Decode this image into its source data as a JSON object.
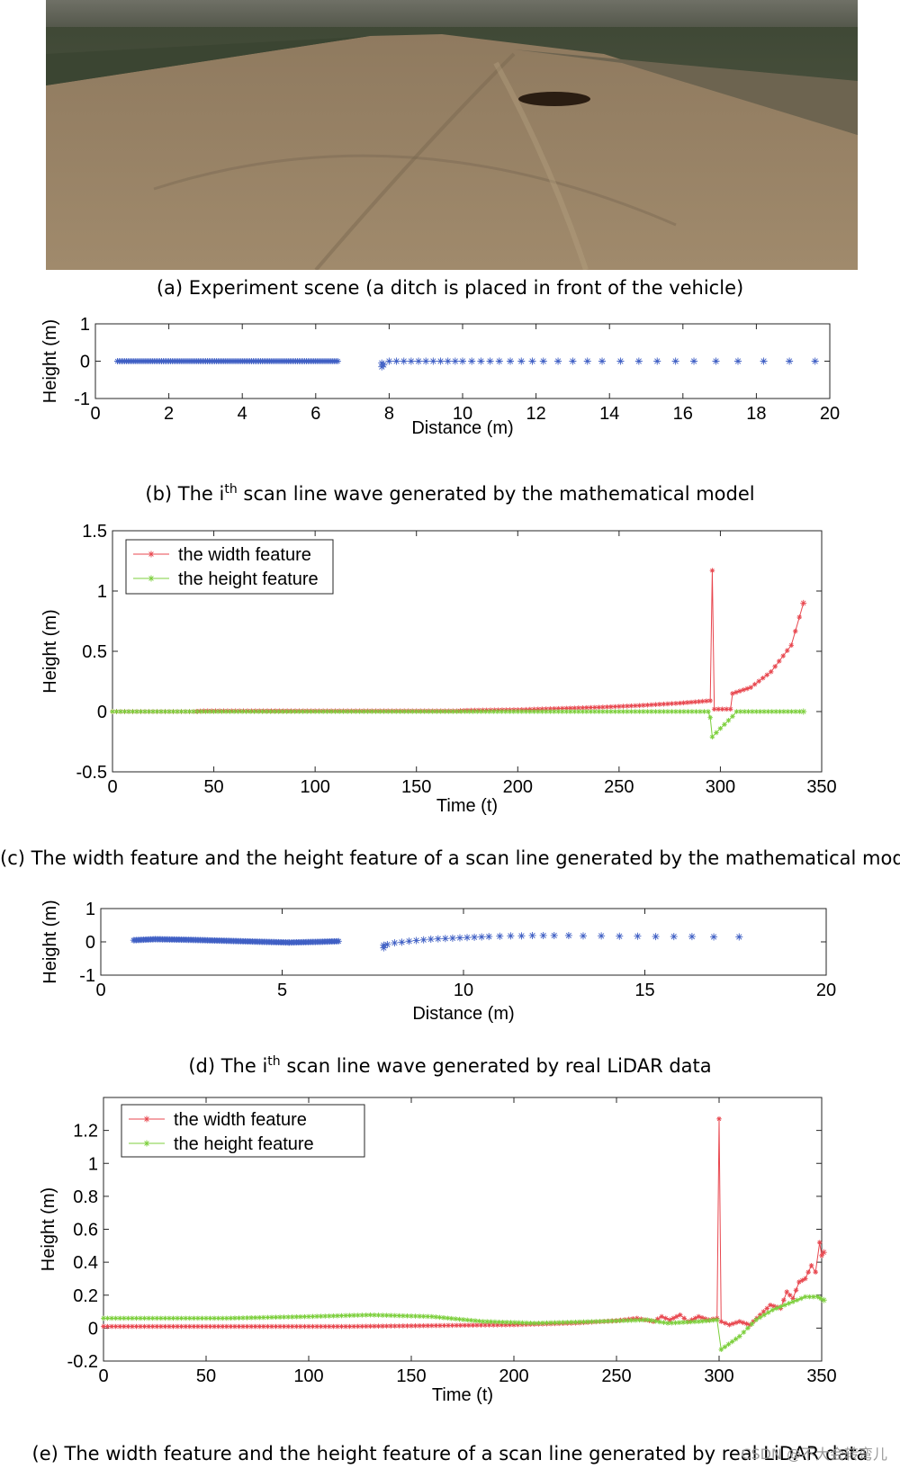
{
  "captions": {
    "a": "(a)   Experiment scene (a ditch is placed in front of the vehicle)",
    "b_pre": "(b) The i",
    "b_sup": "th",
    "b_post": " scan line wave generated by the mathematical model",
    "c": "(c) The width feature and the height feature of a scan line generated by the mathematical model",
    "d_pre": "(d) The i",
    "d_sup": "th",
    "d_post": " scan line wave generated by real LiDAR data",
    "e": "(e) The width feature and the height feature of a scan line generated by real LiDAR data"
  },
  "watermark": "CSDN @不大会转弯儿",
  "colors": {
    "width_feature": "#e8474f",
    "height_feature": "#7ccf3c",
    "scan": "#3f5fc4",
    "axis": "#262626"
  },
  "chart_data": [
    {
      "id": "b",
      "type": "scatter",
      "xlabel": "Distance (m)",
      "ylabel": "Height (m)",
      "xlim": [
        0,
        20
      ],
      "ylim": [
        -1,
        1
      ],
      "xticks": [
        0,
        2,
        4,
        6,
        8,
        10,
        12,
        14,
        16,
        18,
        20
      ],
      "yticks": [
        -1,
        0,
        1
      ],
      "marker": "*",
      "series": [
        {
          "dense_segments": [
            {
              "x_start": 0.6,
              "x_end": 6.6,
              "y": 0.0
            }
          ],
          "points": [
            [
              7.8,
              -0.05
            ],
            [
              7.8,
              -0.15
            ],
            [
              7.85,
              -0.1
            ],
            [
              8.0,
              0
            ],
            [
              8.2,
              0
            ],
            [
              8.4,
              0
            ],
            [
              8.6,
              0
            ],
            [
              8.8,
              0
            ],
            [
              9.0,
              0
            ],
            [
              9.2,
              0
            ],
            [
              9.4,
              0
            ],
            [
              9.6,
              0
            ],
            [
              9.8,
              0
            ],
            [
              10.0,
              0
            ],
            [
              10.25,
              0
            ],
            [
              10.5,
              0
            ],
            [
              10.75,
              0
            ],
            [
              11.0,
              0
            ],
            [
              11.3,
              0
            ],
            [
              11.6,
              0
            ],
            [
              11.9,
              0
            ],
            [
              12.2,
              0
            ],
            [
              12.6,
              0
            ],
            [
              13.0,
              0
            ],
            [
              13.4,
              0
            ],
            [
              13.8,
              0
            ],
            [
              14.3,
              0
            ],
            [
              14.8,
              0
            ],
            [
              15.3,
              0
            ],
            [
              15.8,
              0
            ],
            [
              16.3,
              0
            ],
            [
              16.9,
              0
            ],
            [
              17.5,
              0
            ],
            [
              18.2,
              0
            ],
            [
              18.9,
              0
            ],
            [
              19.6,
              0
            ]
          ]
        }
      ]
    },
    {
      "id": "c",
      "type": "line",
      "xlabel": "Time (t)",
      "ylabel": "Height (m)",
      "xlim": [
        0,
        350
      ],
      "ylim": [
        -0.5,
        1.5
      ],
      "xticks": [
        0,
        50,
        100,
        150,
        200,
        250,
        300,
        350
      ],
      "yticks": [
        -0.5,
        0,
        0.5,
        1,
        1.5
      ],
      "legend": "top-left",
      "series": [
        {
          "name": "the width feature",
          "points": [
            [
              0,
              0
            ],
            [
              40,
              0
            ],
            [
              45,
              0.005
            ],
            [
              100,
              0.005
            ],
            [
              170,
              0.005
            ],
            [
              175,
              0.01
            ],
            [
              200,
              0.015
            ],
            [
              220,
              0.025
            ],
            [
              240,
              0.035
            ],
            [
              260,
              0.05
            ],
            [
              280,
              0.07
            ],
            [
              295,
              0.09
            ],
            [
              296,
              1.17
            ],
            [
              297,
              0.02
            ],
            [
              305,
              0.02
            ],
            [
              306,
              0.15
            ],
            [
              315,
              0.2
            ],
            [
              325,
              0.33
            ],
            [
              335,
              0.55
            ],
            [
              341,
              0.9
            ]
          ]
        },
        {
          "name": "the height feature",
          "points": [
            [
              0,
              0
            ],
            [
              294,
              0
            ],
            [
              295,
              -0.05
            ],
            [
              296,
              -0.21
            ],
            [
              300,
              -0.14
            ],
            [
              306,
              -0.04
            ],
            [
              308,
              0
            ],
            [
              341,
              0
            ]
          ]
        }
      ]
    },
    {
      "id": "d",
      "type": "scatter",
      "xlabel": "Distance (m)",
      "ylabel": "Height (m)",
      "xlim": [
        0,
        20
      ],
      "ylim": [
        -1,
        1
      ],
      "xticks": [
        0,
        5,
        10,
        15,
        20
      ],
      "yticks": [
        -1,
        0,
        1
      ],
      "marker": "*",
      "series": [
        {
          "dense_points": [
            [
              0.9,
              0.05
            ],
            [
              1.5,
              0.08
            ],
            [
              2.5,
              0.06
            ],
            [
              3.5,
              0.03
            ],
            [
              4.5,
              0.0
            ],
            [
              5.2,
              -0.02
            ],
            [
              6.0,
              0.0
            ],
            [
              6.6,
              0.02
            ]
          ],
          "points": [
            [
              7.8,
              -0.1
            ],
            [
              7.8,
              -0.18
            ],
            [
              7.9,
              -0.08
            ],
            [
              8.1,
              -0.03
            ],
            [
              8.3,
              -0.01
            ],
            [
              8.5,
              0.02
            ],
            [
              8.7,
              0.04
            ],
            [
              8.9,
              0.06
            ],
            [
              9.1,
              0.08
            ],
            [
              9.3,
              0.09
            ],
            [
              9.5,
              0.1
            ],
            [
              9.7,
              0.11
            ],
            [
              9.9,
              0.12
            ],
            [
              10.1,
              0.13
            ],
            [
              10.3,
              0.14
            ],
            [
              10.5,
              0.15
            ],
            [
              10.7,
              0.16
            ],
            [
              11.0,
              0.17
            ],
            [
              11.3,
              0.18
            ],
            [
              11.6,
              0.18
            ],
            [
              11.9,
              0.19
            ],
            [
              12.2,
              0.19
            ],
            [
              12.5,
              0.19
            ],
            [
              12.9,
              0.19
            ],
            [
              13.3,
              0.18
            ],
            [
              13.8,
              0.18
            ],
            [
              14.3,
              0.17
            ],
            [
              14.8,
              0.17
            ],
            [
              15.3,
              0.16
            ],
            [
              15.8,
              0.16
            ],
            [
              16.3,
              0.16
            ],
            [
              16.9,
              0.15
            ],
            [
              17.6,
              0.15
            ]
          ]
        }
      ]
    },
    {
      "id": "e",
      "type": "line",
      "xlabel": "Time (t)",
      "ylabel": "Height (m)",
      "xlim": [
        0,
        350
      ],
      "ylim": [
        -0.2,
        1.4
      ],
      "xticks": [
        0,
        50,
        100,
        150,
        200,
        250,
        300,
        350
      ],
      "yticks": [
        -0.2,
        0,
        0.2,
        0.4,
        0.6,
        0.8,
        1,
        1.2
      ],
      "legend": "top-left",
      "series": [
        {
          "name": "the width feature",
          "points": [
            [
              0,
              0.01
            ],
            [
              60,
              0.01
            ],
            [
              120,
              0.01
            ],
            [
              160,
              0.015
            ],
            [
              200,
              0.02
            ],
            [
              230,
              0.03
            ],
            [
              250,
              0.045
            ],
            [
              260,
              0.06
            ],
            [
              268,
              0.04
            ],
            [
              272,
              0.07
            ],
            [
              276,
              0.05
            ],
            [
              281,
              0.08
            ],
            [
              285,
              0.04
            ],
            [
              290,
              0.07
            ],
            [
              295,
              0.05
            ],
            [
              299,
              0.06
            ],
            [
              300,
              1.27
            ],
            [
              301,
              0.04
            ],
            [
              305,
              0.02
            ],
            [
              310,
              0.04
            ],
            [
              315,
              0.02
            ],
            [
              320,
              0.08
            ],
            [
              325,
              0.14
            ],
            [
              330,
              0.12
            ],
            [
              333,
              0.22
            ],
            [
              336,
              0.18
            ],
            [
              339,
              0.28
            ],
            [
              342,
              0.3
            ],
            [
              345,
              0.38
            ],
            [
              347,
              0.34
            ],
            [
              349,
              0.52
            ],
            [
              350,
              0.44
            ],
            [
              351,
              0.46
            ]
          ]
        },
        {
          "name": "the height feature",
          "points": [
            [
              0,
              0.06
            ],
            [
              60,
              0.06
            ],
            [
              100,
              0.07
            ],
            [
              130,
              0.08
            ],
            [
              160,
              0.07
            ],
            [
              185,
              0.04
            ],
            [
              210,
              0.03
            ],
            [
              240,
              0.04
            ],
            [
              265,
              0.05
            ],
            [
              275,
              0.03
            ],
            [
              290,
              0.04
            ],
            [
              299,
              0.05
            ],
            [
              301,
              -0.13
            ],
            [
              310,
              -0.05
            ],
            [
              318,
              0.05
            ],
            [
              326,
              0.11
            ],
            [
              334,
              0.15
            ],
            [
              342,
              0.19
            ],
            [
              348,
              0.19
            ],
            [
              351,
              0.17
            ]
          ]
        }
      ]
    }
  ]
}
